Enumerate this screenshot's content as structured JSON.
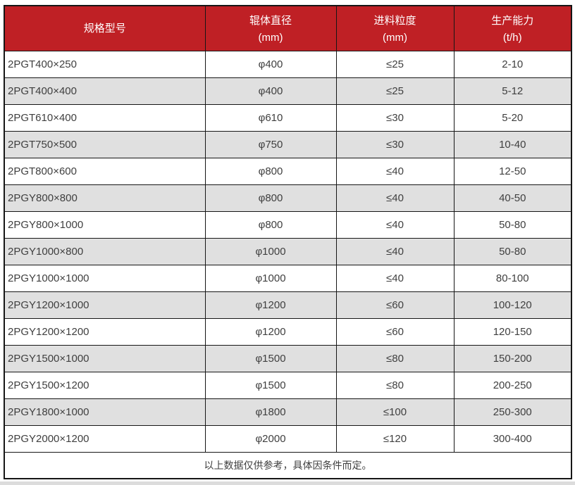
{
  "table": {
    "columns": [
      {
        "label": "规格型号",
        "unit": ""
      },
      {
        "label": "辊体直径",
        "unit": "(mm)"
      },
      {
        "label": "进料粒度",
        "unit": "(mm)"
      },
      {
        "label": "生产能力",
        "unit": "(t/h)"
      }
    ],
    "rows": [
      [
        "2PGT400×250",
        "φ400",
        "≤25",
        "2-10"
      ],
      [
        "2PGT400×400",
        "φ400",
        "≤25",
        "5-12"
      ],
      [
        "2PGT610×400",
        "φ610",
        "≤30",
        "5-20"
      ],
      [
        "2PGT750×500",
        "φ750",
        "≤30",
        "10-40"
      ],
      [
        "2PGT800×600",
        "φ800",
        "≤40",
        "12-50"
      ],
      [
        "2PGY800×800",
        "φ800",
        "≤40",
        "40-50"
      ],
      [
        "2PGY800×1000",
        "φ800",
        "≤40",
        "50-80"
      ],
      [
        "2PGY1000×800",
        "φ1000",
        "≤40",
        "50-80"
      ],
      [
        "2PGY1000×1000",
        "φ1000",
        "≤40",
        "80-100"
      ],
      [
        "2PGY1200×1000",
        "φ1200",
        "≤60",
        "100-120"
      ],
      [
        "2PGY1200×1200",
        "φ1200",
        "≤60",
        "120-150"
      ],
      [
        "2PGY1500×1000",
        "φ1500",
        "≤80",
        "150-200"
      ],
      [
        "2PGY1500×1200",
        "φ1500",
        "≤80",
        "200-250"
      ],
      [
        "2PGY1800×1000",
        "φ1800",
        "≤100",
        "250-300"
      ],
      [
        "2PGY2000×1200",
        "φ2000",
        "≤120",
        "300-400"
      ]
    ],
    "footnote": "以上数据仅供参考，具体因条件而定。",
    "colors": {
      "header_bg": "#bf2025",
      "header_text": "#ffffff",
      "row_alt_bg": "#e0e0e0",
      "border": "#161616",
      "cell_text": "#3f3f3f"
    }
  }
}
